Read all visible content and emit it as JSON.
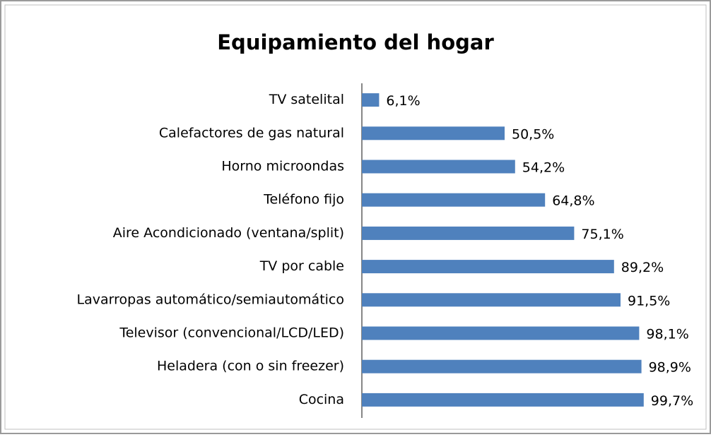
{
  "chart_data": {
    "type": "bar",
    "orientation": "horizontal",
    "title": "Equipamiento del hogar",
    "categories": [
      "TV satelital",
      "Calefactores de gas natural",
      "Horno microondas",
      "Teléfono fijo",
      "Aire Acondicionado (ventana/split)",
      "TV por cable",
      "Lavarropas automático/semiautomático",
      "Televisor (convencional/LCD/LED)",
      "Heladera (con o sin freezer)",
      "Cocina"
    ],
    "values": [
      6.1,
      50.5,
      54.2,
      64.8,
      75.1,
      89.2,
      91.5,
      98.1,
      98.9,
      99.7
    ],
    "value_labels": [
      "6,1%",
      "50,5%",
      "54,2%",
      "64,8%",
      "75,1%",
      "89,2%",
      "91,5%",
      "98,1%",
      "98,9%",
      "99,7%"
    ],
    "color": "#4f81bd",
    "xlim": [
      0,
      100
    ]
  }
}
